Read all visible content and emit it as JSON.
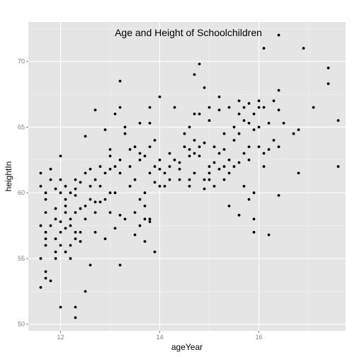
{
  "chart_data": {
    "type": "scatter",
    "title": "Age and Height of Schoolchildren",
    "xlabel": "ageYear",
    "ylabel": "heightIn",
    "xlim": [
      11.35,
      17.75
    ],
    "ylim": [
      49.5,
      73
    ],
    "x_ticks": [
      12,
      14,
      16
    ],
    "y_ticks": [
      50,
      55,
      60,
      65,
      70
    ],
    "grid": true,
    "legend": "none",
    "colors": {
      "panel": "#e5e5e5",
      "grid_major": "#ffffff",
      "grid_minor": "#f2f2f2",
      "point": "#000000",
      "tick_text": "#7f7f7f"
    },
    "points": [
      [
        11.6,
        52.8
      ],
      [
        11.6,
        55.0
      ],
      [
        11.6,
        57.5
      ],
      [
        11.6,
        61.5
      ],
      [
        11.6,
        60.5
      ],
      [
        11.7,
        59.5
      ],
      [
        11.7,
        58.5
      ],
      [
        11.7,
        56.5
      ],
      [
        11.7,
        56.0
      ],
      [
        11.7,
        57.0
      ],
      [
        11.7,
        60.0
      ],
      [
        11.7,
        54.0
      ],
      [
        11.7,
        53.5
      ],
      [
        11.8,
        61.8
      ],
      [
        11.8,
        61.0
      ],
      [
        11.8,
        57.5
      ],
      [
        11.8,
        53.3
      ],
      [
        11.9,
        55.5
      ],
      [
        11.9,
        55.0
      ],
      [
        11.9,
        56.5
      ],
      [
        11.9,
        58.0
      ],
      [
        11.9,
        58.8
      ],
      [
        11.9,
        60.3
      ],
      [
        12.0,
        51.3
      ],
      [
        12.0,
        56.0
      ],
      [
        12.0,
        57.0
      ],
      [
        12.0,
        57.8
      ],
      [
        12.0,
        60.0
      ],
      [
        12.0,
        61.0
      ],
      [
        12.0,
        62.8
      ],
      [
        12.1,
        55.5
      ],
      [
        12.1,
        57.3
      ],
      [
        12.1,
        58.5
      ],
      [
        12.1,
        59.0
      ],
      [
        12.1,
        59.5
      ],
      [
        12.1,
        60.5
      ],
      [
        12.2,
        55.0
      ],
      [
        12.2,
        56.0
      ],
      [
        12.2,
        57.5
      ],
      [
        12.2,
        58.0
      ],
      [
        12.2,
        60.0
      ],
      [
        12.3,
        50.5
      ],
      [
        12.3,
        51.3
      ],
      [
        12.3,
        56.5
      ],
      [
        12.3,
        57.0
      ],
      [
        12.3,
        58.5
      ],
      [
        12.3,
        59.8
      ],
      [
        12.3,
        61.0
      ],
      [
        12.3,
        60.3
      ],
      [
        12.4,
        56.3
      ],
      [
        12.4,
        57.0
      ],
      [
        12.4,
        58.8
      ],
      [
        12.4,
        60.8
      ],
      [
        12.4,
        56.3
      ],
      [
        12.5,
        52.5
      ],
      [
        12.5,
        58.0
      ],
      [
        12.5,
        59.0
      ],
      [
        12.5,
        61.5
      ],
      [
        12.5,
        64.3
      ],
      [
        12.6,
        54.5
      ],
      [
        12.6,
        59.5
      ],
      [
        12.6,
        60.5
      ],
      [
        12.6,
        61.8
      ],
      [
        12.7,
        57.0
      ],
      [
        12.7,
        58.5
      ],
      [
        12.7,
        59.3
      ],
      [
        12.7,
        61.0
      ],
      [
        12.7,
        66.3
      ],
      [
        12.8,
        59.3
      ],
      [
        12.8,
        60.5
      ],
      [
        12.8,
        62.0
      ],
      [
        12.9,
        56.5
      ],
      [
        12.9,
        59.5
      ],
      [
        12.9,
        61.5
      ],
      [
        12.9,
        64.8
      ],
      [
        13.0,
        58.5
      ],
      [
        13.0,
        60.0
      ],
      [
        13.0,
        61.8
      ],
      [
        13.0,
        63.3
      ],
      [
        13.0,
        62.8
      ],
      [
        13.1,
        57.3
      ],
      [
        13.1,
        60.0
      ],
      [
        13.1,
        62.0
      ],
      [
        13.1,
        66.0
      ],
      [
        13.2,
        54.5
      ],
      [
        13.2,
        58.3
      ],
      [
        13.2,
        61.5
      ],
      [
        13.2,
        62.5
      ],
      [
        13.2,
        66.5
      ],
      [
        13.2,
        68.5
      ],
      [
        13.3,
        58.0
      ],
      [
        13.3,
        64.5
      ],
      [
        13.3,
        65.0
      ],
      [
        13.4,
        60.5
      ],
      [
        13.4,
        62.0
      ],
      [
        13.4,
        63.3
      ],
      [
        13.5,
        56.8
      ],
      [
        13.5,
        58.5
      ],
      [
        13.5,
        61.0
      ],
      [
        13.5,
        63.5
      ],
      [
        13.6,
        57.5
      ],
      [
        13.6,
        59.5
      ],
      [
        13.6,
        62.5
      ],
      [
        13.6,
        63.0
      ],
      [
        13.6,
        65.3
      ],
      [
        13.7,
        56.3
      ],
      [
        13.7,
        58.0
      ],
      [
        13.7,
        59.0
      ],
      [
        13.7,
        60.0
      ],
      [
        13.7,
        62.8
      ],
      [
        13.8,
        57.8
      ],
      [
        13.8,
        58.0
      ],
      [
        13.8,
        61.5
      ],
      [
        13.8,
        63.5
      ],
      [
        13.8,
        65.3
      ],
      [
        13.8,
        66.5
      ],
      [
        13.9,
        55.5
      ],
      [
        13.9,
        60.8
      ],
      [
        13.9,
        62.0
      ],
      [
        13.9,
        64.0
      ],
      [
        14.0,
        60.5
      ],
      [
        14.0,
        61.8
      ],
      [
        14.0,
        62.5
      ],
      [
        14.0,
        67.3
      ],
      [
        14.1,
        60.5
      ],
      [
        14.1,
        61.5
      ],
      [
        14.2,
        61.0
      ],
      [
        14.2,
        62.0
      ],
      [
        14.2,
        63.0
      ],
      [
        14.3,
        66.5
      ],
      [
        14.3,
        62.5
      ],
      [
        14.4,
        61.0
      ],
      [
        14.4,
        61.8
      ],
      [
        14.4,
        62.3
      ],
      [
        14.5,
        63.5
      ],
      [
        14.5,
        64.5
      ],
      [
        14.6,
        60.5
      ],
      [
        14.6,
        61.0
      ],
      [
        14.6,
        62.8
      ],
      [
        14.6,
        63.3
      ],
      [
        14.6,
        65.0
      ],
      [
        14.7,
        61.5
      ],
      [
        14.7,
        63.0
      ],
      [
        14.7,
        64.0
      ],
      [
        14.7,
        66.0
      ],
      [
        14.7,
        69.0
      ],
      [
        14.8,
        62.8
      ],
      [
        14.8,
        63.5
      ],
      [
        14.8,
        69.8
      ],
      [
        14.8,
        66.0
      ],
      [
        14.9,
        60.3
      ],
      [
        14.9,
        61.0
      ],
      [
        14.9,
        63.8
      ],
      [
        14.9,
        68.0
      ],
      [
        15.0,
        61.5
      ],
      [
        15.0,
        62.0
      ],
      [
        15.0,
        65.5
      ],
      [
        15.0,
        66.5
      ],
      [
        15.0,
        61.0
      ],
      [
        15.1,
        60.5
      ],
      [
        15.1,
        62.3
      ],
      [
        15.1,
        63.5
      ],
      [
        15.2,
        61.8
      ],
      [
        15.2,
        63.0
      ],
      [
        15.2,
        66.3
      ],
      [
        15.2,
        67.3
      ],
      [
        15.3,
        61.0
      ],
      [
        15.3,
        62.0
      ],
      [
        15.3,
        63.3
      ],
      [
        15.3,
        64.5
      ],
      [
        15.4,
        59.0
      ],
      [
        15.4,
        61.5
      ],
      [
        15.4,
        62.5
      ],
      [
        15.4,
        66.5
      ],
      [
        15.5,
        62.0
      ],
      [
        15.5,
        64.0
      ],
      [
        15.5,
        65.0
      ],
      [
        15.6,
        58.3
      ],
      [
        15.6,
        62.3
      ],
      [
        15.6,
        64.5
      ],
      [
        15.6,
        66.0
      ],
      [
        15.6,
        67.0
      ],
      [
        15.7,
        60.5
      ],
      [
        15.7,
        63.0
      ],
      [
        15.7,
        65.5
      ],
      [
        15.7,
        66.5
      ],
      [
        15.8,
        59.5
      ],
      [
        15.8,
        62.5
      ],
      [
        15.8,
        63.5
      ],
      [
        15.8,
        65.3
      ],
      [
        15.8,
        66.8
      ],
      [
        15.9,
        57.0
      ],
      [
        15.9,
        58.0
      ],
      [
        15.9,
        60.0
      ],
      [
        15.9,
        64.8
      ],
      [
        15.9,
        66.0
      ],
      [
        16.0,
        63.5
      ],
      [
        16.0,
        65.0
      ],
      [
        16.0,
        66.5
      ],
      [
        16.0,
        67.0
      ],
      [
        16.1,
        62.0
      ],
      [
        16.1,
        63.0
      ],
      [
        16.1,
        66.5
      ],
      [
        16.1,
        71.0
      ],
      [
        16.2,
        56.8
      ],
      [
        16.2,
        63.3
      ],
      [
        16.2,
        65.3
      ],
      [
        16.3,
        64.0
      ],
      [
        16.3,
        67.0
      ],
      [
        16.4,
        59.8
      ],
      [
        16.4,
        63.5
      ],
      [
        16.4,
        66.3
      ],
      [
        16.4,
        67.8
      ],
      [
        16.4,
        72.0
      ],
      [
        16.5,
        65.3
      ],
      [
        16.7,
        64.5
      ],
      [
        16.8,
        61.5
      ],
      [
        16.8,
        64.8
      ],
      [
        16.9,
        71.0
      ],
      [
        17.1,
        66.5
      ],
      [
        17.4,
        68.3
      ],
      [
        17.4,
        69.5
      ],
      [
        17.6,
        62.0
      ],
      [
        17.6,
        65.5
      ]
    ]
  }
}
